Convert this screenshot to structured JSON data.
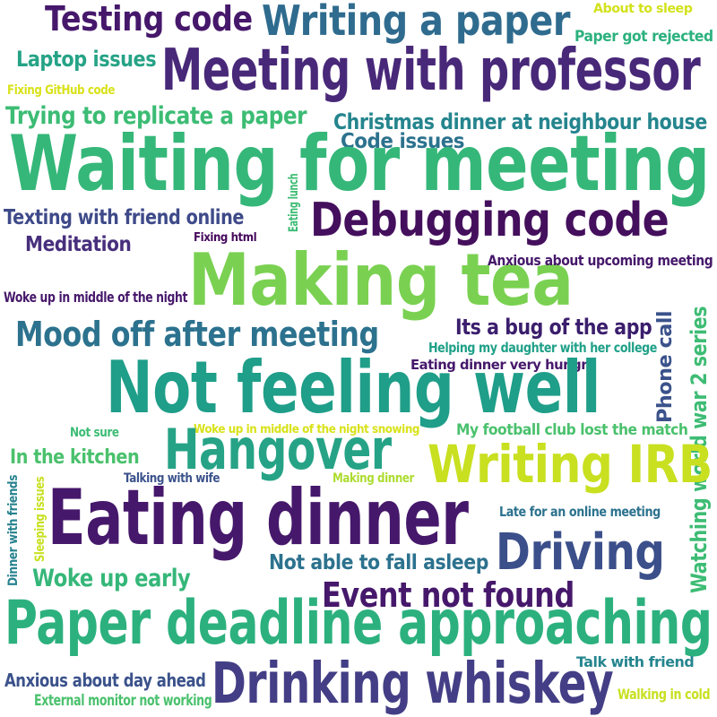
{
  "palette": {
    "purple": "#46186b",
    "indigo": "#3b3f8e",
    "blue": "#33628c",
    "teal": "#25858e",
    "green": "#26a386",
    "mint": "#3cbc74",
    "lime": "#7ad151",
    "yellow": "#c8e020"
  },
  "words": [
    {
      "id": "w01",
      "text": "Testing code",
      "color": "#46186b"
    },
    {
      "id": "w02",
      "text": "Writing a paper",
      "color": "#2f6b8e"
    },
    {
      "id": "w03",
      "text": "About to sleep",
      "color": "#d2e21b"
    },
    {
      "id": "w04",
      "text": "Paper got rejected",
      "color": "#2cb17e"
    },
    {
      "id": "w05",
      "text": "Laptop issues",
      "color": "#26a386"
    },
    {
      "id": "w06",
      "text": "Meeting with professor",
      "color": "#482878"
    },
    {
      "id": "w07",
      "text": "Fixing GitHub code",
      "color": "#d8e219"
    },
    {
      "id": "w08",
      "text": "Trying to replicate a paper",
      "color": "#3cbc74"
    },
    {
      "id": "w09",
      "text": "Christmas dinner at neighbour house",
      "color": "#25858e"
    },
    {
      "id": "w10",
      "text": "Code issues",
      "color": "#2c728e"
    },
    {
      "id": "w11",
      "text": "Waiting for meeting",
      "color": "#35b779"
    },
    {
      "id": "w12",
      "text": "Eating lunch",
      "color": "#3dbc74"
    },
    {
      "id": "w13",
      "text": "Texting with friend online",
      "color": "#3e4a89"
    },
    {
      "id": "w14",
      "text": "Debugging code",
      "color": "#440f5c"
    },
    {
      "id": "w15",
      "text": "Meditation",
      "color": "#472f7d"
    },
    {
      "id": "w16",
      "text": "Fixing html",
      "color": "#46085c"
    },
    {
      "id": "w17",
      "text": "Making tea",
      "color": "#7ad151"
    },
    {
      "id": "w18",
      "text": "Anxious about upcoming meeting",
      "color": "#46186b"
    },
    {
      "id": "w19",
      "text": "Woke up in middle of the night",
      "color": "#46186b"
    },
    {
      "id": "w20",
      "text": "Mood off after meeting",
      "color": "#2c728e"
    },
    {
      "id": "w21",
      "text": "Its a bug of the app",
      "color": "#3b1e6d"
    },
    {
      "id": "w22",
      "text": "Phone call",
      "color": "#3b528b"
    },
    {
      "id": "w23",
      "text": "Helping my daughter with her college",
      "color": "#1fa088"
    },
    {
      "id": "w24",
      "text": "Watching world war 2 series",
      "color": "#3dbc74"
    },
    {
      "id": "w25",
      "text": "Eating dinner very hungry",
      "color": "#46186b"
    },
    {
      "id": "w26",
      "text": "Not feeling well",
      "color": "#1f9e89"
    },
    {
      "id": "w27",
      "text": "Not sure",
      "color": "#3cbc74"
    },
    {
      "id": "w28",
      "text": "Woke up in middle of the night snowing",
      "color": "#d8e219"
    },
    {
      "id": "w29",
      "text": "My football club lost the match",
      "color": "#4ac16d"
    },
    {
      "id": "w30",
      "text": "In the kitchen",
      "color": "#4ac16d"
    },
    {
      "id": "w31",
      "text": "Hangover",
      "color": "#26a386"
    },
    {
      "id": "w32",
      "text": "Writing IRB",
      "color": "#c8e020"
    },
    {
      "id": "w33",
      "text": "Talking with wife",
      "color": "#3b528b"
    },
    {
      "id": "w34",
      "text": "Making dinner",
      "color": "#addc30"
    },
    {
      "id": "w35",
      "text": "Dinner with friends",
      "color": "#26828e"
    },
    {
      "id": "w36",
      "text": "Sleeping issues",
      "color": "#c8e020"
    },
    {
      "id": "w37",
      "text": "Eating dinner",
      "color": "#46186b"
    },
    {
      "id": "w38",
      "text": "Late for an online meeting",
      "color": "#2c728e"
    },
    {
      "id": "w39",
      "text": "Driving",
      "color": "#3b4f8a"
    },
    {
      "id": "w40",
      "text": "Woke up early",
      "color": "#35b779"
    },
    {
      "id": "w41",
      "text": "Not able to fall asleep",
      "color": "#2c728e"
    },
    {
      "id": "w42",
      "text": "Event not found",
      "color": "#46186b"
    },
    {
      "id": "w43",
      "text": "Paper deadline approaching",
      "color": "#2cb17e"
    },
    {
      "id": "w44",
      "text": "Anxious about day ahead",
      "color": "#3b528b"
    },
    {
      "id": "w45",
      "text": "Drinking whiskey",
      "color": "#433e85"
    },
    {
      "id": "w46",
      "text": "Talk with friend",
      "color": "#25858e"
    },
    {
      "id": "w47",
      "text": "External monitor not working",
      "color": "#4ac16d"
    },
    {
      "id": "w48",
      "text": "Walking in cold",
      "color": "#c8e020"
    }
  ]
}
